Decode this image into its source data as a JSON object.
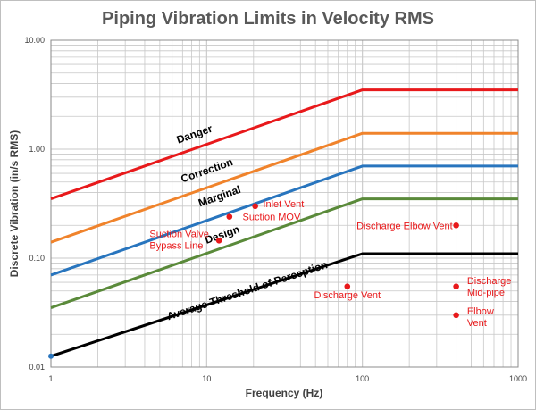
{
  "chart_data": {
    "type": "line",
    "title": "Piping Vibration Limits in Velocity RMS",
    "xlabel": "Frequency (Hz)",
    "ylabel": "Discrete Vibration (in/s RMS)",
    "xscale": "log",
    "yscale": "log",
    "xlim": [
      1,
      1000
    ],
    "ylim": [
      0.01,
      10
    ],
    "x_tick_labels": [
      {
        "value": 1,
        "label": "1"
      },
      {
        "value": 10,
        "label": "10"
      },
      {
        "value": 100,
        "label": "100"
      },
      {
        "value": 1000,
        "label": "1000"
      }
    ],
    "y_tick_labels": [
      {
        "value": 10,
        "label": "10.00"
      },
      {
        "value": 1,
        "label": "1.00"
      },
      {
        "value": 0.1,
        "label": "0.10"
      },
      {
        "value": 0.01,
        "label": "0.01"
      }
    ],
    "grid": true,
    "series": [
      {
        "name": "Danger",
        "color": "#e8191b",
        "x": [
          1,
          100,
          1000
        ],
        "y": [
          0.35,
          3.5,
          3.5
        ]
      },
      {
        "name": "Correction",
        "color": "#f0832b",
        "x": [
          1,
          100,
          1000
        ],
        "y": [
          0.14,
          1.4,
          1.4
        ]
      },
      {
        "name": "Marginal",
        "color": "#2875be",
        "x": [
          1,
          100,
          1000
        ],
        "y": [
          0.07,
          0.7,
          0.7
        ]
      },
      {
        "name": "Design",
        "color": "#5a8a3a",
        "x": [
          1,
          100,
          1000
        ],
        "y": [
          0.035,
          0.35,
          0.35
        ]
      },
      {
        "name": "Average Threshold of Perception",
        "color": "#000000",
        "x": [
          1,
          100,
          1000
        ],
        "y": [
          0.0126,
          0.11,
          0.11
        ]
      }
    ],
    "curve_labels": [
      {
        "series": "Danger",
        "text": "Danger",
        "x": 8.5,
        "y": 1.28
      },
      {
        "series": "Correction",
        "text": "Correction",
        "x": 10.2,
        "y": 0.595
      },
      {
        "series": "Marginal",
        "text": "Marginal",
        "x": 12.3,
        "y": 0.345
      },
      {
        "series": "Design",
        "text": "Design",
        "x": 12.8,
        "y": 0.153
      },
      {
        "series": "Average Threshold of Perception",
        "text": "Average Threshold of Perception",
        "x": 18.5,
        "y": 0.047
      }
    ],
    "points": [
      {
        "label": "Inlet Vent",
        "x": 20.5,
        "y": 0.3,
        "label_x": 23,
        "label_y": 0.315,
        "anchor": "start"
      },
      {
        "label": "Suction MOV",
        "x": 14,
        "y": 0.24,
        "label_x": 17,
        "label_y": 0.24,
        "anchor": "start"
      },
      {
        "label": "Suction Valve Bypass Line",
        "label_lines": [
          "Suction Valve",
          "Bypass Line"
        ],
        "x": 12,
        "y": 0.145,
        "label_x": 4.3,
        "label_y": 0.148,
        "anchor": "start"
      },
      {
        "label": "Discharge Elbow Vent",
        "x": 400,
        "y": 0.2,
        "label_x": 380,
        "label_y": 0.2,
        "anchor": "end"
      },
      {
        "label": "Discharge Vent",
        "x": 80,
        "y": 0.055,
        "label_x": 80,
        "label_y": 0.046,
        "anchor": "middle"
      },
      {
        "label": "Discharge Mid-pipe",
        "label_lines": [
          "Discharge",
          "Mid-pipe"
        ],
        "x": 400,
        "y": 0.055,
        "label_x": 470,
        "label_y": 0.055,
        "anchor": "start"
      },
      {
        "label": "Elbow Vent",
        "label_lines": [
          "Elbow",
          "Vent"
        ],
        "x": 400,
        "y": 0.03,
        "label_x": 470,
        "label_y": 0.029,
        "anchor": "start"
      }
    ],
    "colors": {
      "grid": "#c8c8c8",
      "axis": "#8c8c8c",
      "point": "#e8191b",
      "point_label": "#e8191b",
      "title": "#595959",
      "axis_text": "#404040",
      "origin_marker": "#2875be"
    },
    "origin_marker": {
      "x": 1,
      "y": 0.0126
    }
  }
}
